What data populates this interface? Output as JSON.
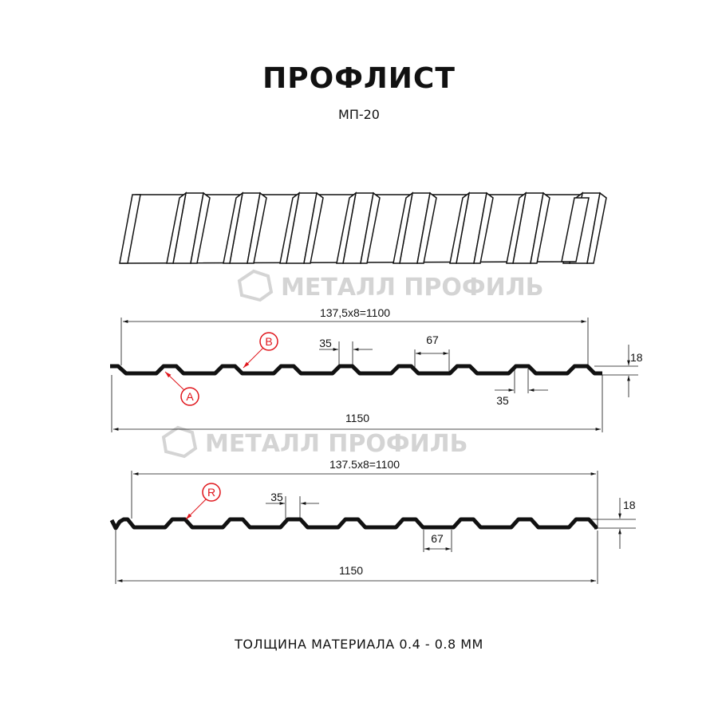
{
  "header": {
    "title": "ПРОФЛИСТ",
    "subtitle": "МП-20"
  },
  "watermark": "МЕТАЛЛ ПРОФИЛЬ",
  "profile_1": {
    "overall_pitch": "137,5x8=1100",
    "full_width": "1150",
    "top_flange": "35",
    "bottom_flange": "35",
    "trough": "67",
    "height": "18",
    "marker_a": "A",
    "marker_b": "B"
  },
  "profile_2": {
    "overall_pitch": "137.5x8=1100",
    "full_width": "1150",
    "top_flange": "35",
    "trough": "67",
    "height": "18",
    "marker_r": "R"
  },
  "footer": {
    "thickness": "ТОЛЩИНА МАТЕРИАЛА 0.4 - 0.8 ММ"
  },
  "colors": {
    "line": "#111111",
    "marker": "#e0151b",
    "watermark": "#d4d4d4"
  }
}
